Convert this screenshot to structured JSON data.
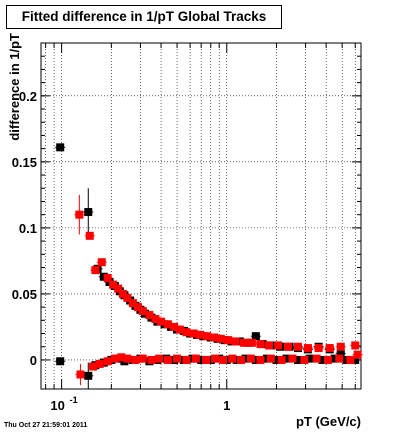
{
  "chart_data": {
    "type": "scatter",
    "title": "Fitted difference in 1/pT  Global Tracks",
    "xlabel": "pT (GeV/c)",
    "ylabel": "difference in 1/pT",
    "x_scale": "log",
    "xlim": [
      0.075,
      6.5
    ],
    "ylim": [
      -0.022,
      0.24
    ],
    "x_ticks": [
      {
        "value": 0.1,
        "base": "10",
        "exp": "-1"
      },
      {
        "value": 1,
        "label": "1"
      }
    ],
    "y_ticks": [
      {
        "value": 0,
        "label": "0"
      },
      {
        "value": 0.05,
        "label": "0.05"
      },
      {
        "value": 0.1,
        "label": "0.1"
      },
      {
        "value": 0.15,
        "label": "0.15"
      },
      {
        "value": 0.2,
        "label": "0.2"
      }
    ],
    "grid": true,
    "series": [
      {
        "color": "#000000",
        "marker": "square",
        "points": [
          {
            "x": 0.098,
            "y": 0.161
          },
          {
            "x": 0.145,
            "y": 0.112,
            "yerr": 0.018
          },
          {
            "x": 0.165,
            "y": 0.069
          },
          {
            "x": 0.18,
            "y": 0.063
          },
          {
            "x": 0.195,
            "y": 0.059
          },
          {
            "x": 0.21,
            "y": 0.056
          },
          {
            "x": 0.225,
            "y": 0.052
          },
          {
            "x": 0.24,
            "y": 0.049
          },
          {
            "x": 0.26,
            "y": 0.045
          },
          {
            "x": 0.28,
            "y": 0.041
          },
          {
            "x": 0.3,
            "y": 0.038
          },
          {
            "x": 0.32,
            "y": 0.035
          },
          {
            "x": 0.35,
            "y": 0.032
          },
          {
            "x": 0.38,
            "y": 0.029
          },
          {
            "x": 0.42,
            "y": 0.027
          },
          {
            "x": 0.46,
            "y": 0.025
          },
          {
            "x": 0.5,
            "y": 0.023
          },
          {
            "x": 0.55,
            "y": 0.022
          },
          {
            "x": 0.6,
            "y": 0.02
          },
          {
            "x": 0.66,
            "y": 0.019
          },
          {
            "x": 0.72,
            "y": 0.018
          },
          {
            "x": 0.8,
            "y": 0.017
          },
          {
            "x": 0.88,
            "y": 0.016
          },
          {
            "x": 0.97,
            "y": 0.015
          },
          {
            "x": 1.07,
            "y": 0.014
          },
          {
            "x": 1.2,
            "y": 0.014
          },
          {
            "x": 1.35,
            "y": 0.013
          },
          {
            "x": 1.5,
            "y": 0.018
          },
          {
            "x": 1.65,
            "y": 0.012
          },
          {
            "x": 1.85,
            "y": 0.011
          },
          {
            "x": 2.1,
            "y": 0.01
          },
          {
            "x": 2.4,
            "y": 0.01
          },
          {
            "x": 2.7,
            "y": 0.009
          },
          {
            "x": 3.1,
            "y": 0.008
          },
          {
            "x": 3.6,
            "y": 0.01
          },
          {
            "x": 4.2,
            "y": 0.008
          },
          {
            "x": 4.9,
            "y": 0.005
          },
          {
            "x": 0.098,
            "y": -0.001
          },
          {
            "x": 0.145,
            "y": -0.012,
            "yerr": 0.01
          },
          {
            "x": 0.16,
            "y": -0.004
          },
          {
            "x": 0.18,
            "y": -0.002
          },
          {
            "x": 0.2,
            "y": 0.0
          },
          {
            "x": 0.22,
            "y": 0.001
          },
          {
            "x": 0.24,
            "y": -0.001
          },
          {
            "x": 0.27,
            "y": 0.0
          },
          {
            "x": 0.3,
            "y": 0.001
          },
          {
            "x": 0.34,
            "y": -0.001
          },
          {
            "x": 0.38,
            "y": 0.0
          },
          {
            "x": 0.43,
            "y": 0.001
          },
          {
            "x": 0.48,
            "y": 0.0
          },
          {
            "x": 0.55,
            "y": 0.0
          },
          {
            "x": 0.62,
            "y": 0.001
          },
          {
            "x": 0.7,
            "y": 0.0
          },
          {
            "x": 0.8,
            "y": 0.0
          },
          {
            "x": 0.9,
            "y": 0.001
          },
          {
            "x": 1.0,
            "y": 0.0
          },
          {
            "x": 1.15,
            "y": 0.0
          },
          {
            "x": 1.3,
            "y": 0.001
          },
          {
            "x": 1.5,
            "y": 0.0
          },
          {
            "x": 1.75,
            "y": 0.001
          },
          {
            "x": 2.0,
            "y": 0.0
          },
          {
            "x": 2.3,
            "y": 0.001
          },
          {
            "x": 2.7,
            "y": 0.0
          },
          {
            "x": 3.2,
            "y": 0.001
          },
          {
            "x": 3.8,
            "y": 0.0
          },
          {
            "x": 4.5,
            "y": 0.001
          },
          {
            "x": 5.3,
            "y": 0.0
          },
          {
            "x": 6.0,
            "y": 0.0
          }
        ]
      },
      {
        "color": "#ff0000",
        "marker": "square",
        "points": [
          {
            "x": 0.128,
            "y": 0.11,
            "yerr": 0.015
          },
          {
            "x": 0.148,
            "y": 0.094
          },
          {
            "x": 0.16,
            "y": 0.068
          },
          {
            "x": 0.175,
            "y": 0.074
          },
          {
            "x": 0.19,
            "y": 0.062
          },
          {
            "x": 0.205,
            "y": 0.057
          },
          {
            "x": 0.22,
            "y": 0.054
          },
          {
            "x": 0.235,
            "y": 0.05
          },
          {
            "x": 0.25,
            "y": 0.047
          },
          {
            "x": 0.27,
            "y": 0.043
          },
          {
            "x": 0.29,
            "y": 0.04
          },
          {
            "x": 0.31,
            "y": 0.037
          },
          {
            "x": 0.34,
            "y": 0.034
          },
          {
            "x": 0.37,
            "y": 0.031
          },
          {
            "x": 0.4,
            "y": 0.029
          },
          {
            "x": 0.44,
            "y": 0.027
          },
          {
            "x": 0.48,
            "y": 0.025
          },
          {
            "x": 0.52,
            "y": 0.023
          },
          {
            "x": 0.57,
            "y": 0.021
          },
          {
            "x": 0.63,
            "y": 0.02
          },
          {
            "x": 0.69,
            "y": 0.019
          },
          {
            "x": 0.76,
            "y": 0.018
          },
          {
            "x": 0.84,
            "y": 0.017
          },
          {
            "x": 0.92,
            "y": 0.016
          },
          {
            "x": 1.02,
            "y": 0.015
          },
          {
            "x": 1.13,
            "y": 0.014
          },
          {
            "x": 1.27,
            "y": 0.013
          },
          {
            "x": 1.42,
            "y": 0.013
          },
          {
            "x": 1.6,
            "y": 0.012
          },
          {
            "x": 1.8,
            "y": 0.011
          },
          {
            "x": 2.05,
            "y": 0.011
          },
          {
            "x": 2.35,
            "y": 0.01
          },
          {
            "x": 2.7,
            "y": 0.01
          },
          {
            "x": 3.1,
            "y": 0.009
          },
          {
            "x": 3.6,
            "y": 0.009
          },
          {
            "x": 4.2,
            "y": 0.009
          },
          {
            "x": 4.9,
            "y": 0.01
          },
          {
            "x": 6.0,
            "y": 0.011
          },
          {
            "x": 0.13,
            "y": -0.011,
            "yerr": 0.008
          },
          {
            "x": 0.155,
            "y": -0.005
          },
          {
            "x": 0.17,
            "y": -0.003
          },
          {
            "x": 0.19,
            "y": -0.001
          },
          {
            "x": 0.21,
            "y": 0.001
          },
          {
            "x": 0.23,
            "y": 0.002
          },
          {
            "x": 0.25,
            "y": 0.001
          },
          {
            "x": 0.28,
            "y": 0.0
          },
          {
            "x": 0.31,
            "y": 0.001
          },
          {
            "x": 0.35,
            "y": 0.0
          },
          {
            "x": 0.39,
            "y": 0.001
          },
          {
            "x": 0.44,
            "y": 0.0
          },
          {
            "x": 0.5,
            "y": 0.001
          },
          {
            "x": 0.57,
            "y": 0.0
          },
          {
            "x": 0.65,
            "y": 0.001
          },
          {
            "x": 0.75,
            "y": 0.0
          },
          {
            "x": 0.85,
            "y": 0.001
          },
          {
            "x": 0.95,
            "y": 0.0
          },
          {
            "x": 1.08,
            "y": 0.001
          },
          {
            "x": 1.22,
            "y": 0.0
          },
          {
            "x": 1.4,
            "y": 0.001
          },
          {
            "x": 1.6,
            "y": 0.0
          },
          {
            "x": 1.85,
            "y": 0.001
          },
          {
            "x": 2.15,
            "y": 0.0
          },
          {
            "x": 2.5,
            "y": 0.001
          },
          {
            "x": 2.95,
            "y": 0.0
          },
          {
            "x": 3.5,
            "y": 0.001
          },
          {
            "x": 4.1,
            "y": 0.0
          },
          {
            "x": 4.8,
            "y": 0.001
          },
          {
            "x": 5.6,
            "y": 0.0
          },
          {
            "x": 6.2,
            "y": 0.004
          }
        ]
      }
    ]
  },
  "footer_text": "Thu Oct 27 21:59:01 2011"
}
